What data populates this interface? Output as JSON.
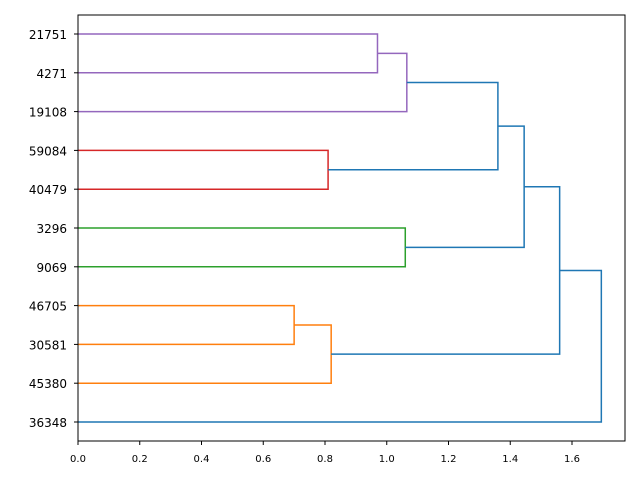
{
  "chart_data": {
    "type": "dendrogram",
    "orientation": "horizontal",
    "leaves": [
      "21751",
      "4271",
      "19108",
      "59084",
      "40479",
      "3296",
      "9069",
      "46705",
      "30581",
      "45380",
      "36348"
    ],
    "x_ticks": [
      "0.0",
      "0.2",
      "0.4",
      "0.6",
      "0.8",
      "1.0",
      "1.2",
      "1.4",
      "1.6"
    ],
    "xlim": [
      0,
      1.78
    ],
    "links": [
      {
        "a": "21751",
        "b": "4271",
        "height": 0.97,
        "color": "#9467bd"
      },
      {
        "a": "link0",
        "b": "19108",
        "height": 1.065,
        "color": "#9467bd"
      },
      {
        "a": "59084",
        "b": "40479",
        "height": 0.81,
        "color": "#d62728"
      },
      {
        "a": "link1",
        "b": "link2",
        "height": 1.36,
        "color": "#1f77b4"
      },
      {
        "a": "3296",
        "b": "9069",
        "height": 1.06,
        "color": "#2ca02c"
      },
      {
        "a": "link3",
        "b": "link4",
        "height": 1.445,
        "color": "#1f77b4"
      },
      {
        "a": "46705",
        "b": "30581",
        "height": 0.7,
        "color": "#ff7f0e"
      },
      {
        "a": "link6",
        "b": "45380",
        "height": 0.82,
        "color": "#ff7f0e"
      },
      {
        "a": "link5",
        "b": "link7",
        "height": 1.56,
        "color": "#1f77b4"
      },
      {
        "a": "link8",
        "b": "36348",
        "height": 1.695,
        "color": "#1f77b4"
      }
    ]
  }
}
